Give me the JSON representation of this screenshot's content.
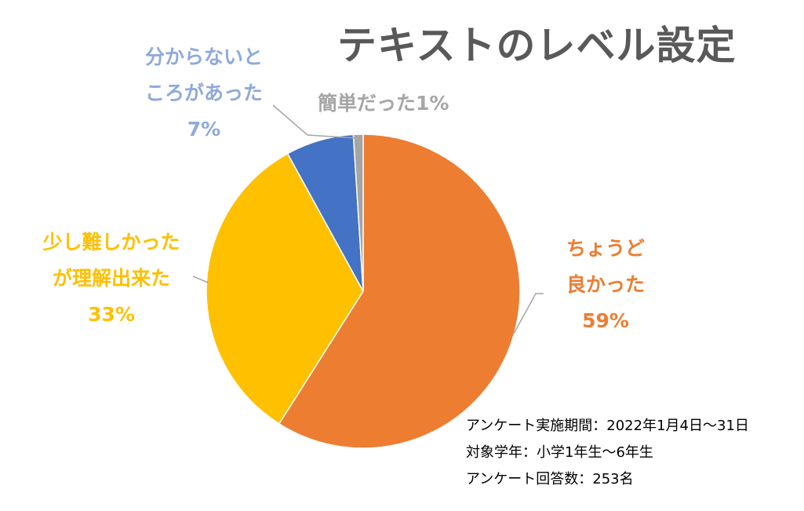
{
  "title": "テキストのレベル設定",
  "colors": {
    "orange": "#ED7D31",
    "yellow": "#FFC000",
    "blue": "#4472C4",
    "gray": "#A5A5A5",
    "leader": "#A6A6A6"
  },
  "chart_data": {
    "type": "pie",
    "title": "テキストのレベル設定",
    "slices": [
      {
        "label_lines": [
          "ちょうど",
          "良かった"
        ],
        "percent_label": "59%",
        "value": 59,
        "color": "#ED7D31"
      },
      {
        "label_lines": [
          "少し難しかった",
          "が理解出来た"
        ],
        "percent_label": "33%",
        "value": 33,
        "color": "#FFC000"
      },
      {
        "label_lines": [
          "分からないと",
          "ころがあった"
        ],
        "percent_label": "7%",
        "value": 7,
        "color": "#4472C4"
      },
      {
        "label_lines": [
          "簡単だった1%"
        ],
        "percent_label": "",
        "value": 1,
        "color": "#A5A5A5"
      }
    ],
    "start_angle_deg": 0,
    "direction": "clockwise",
    "legend": "none"
  },
  "notes": [
    "アンケート実施期間：2022年1月4日～31日",
    "対象学年：小学1年生～6年生",
    "アンケート回答数：253名"
  ]
}
